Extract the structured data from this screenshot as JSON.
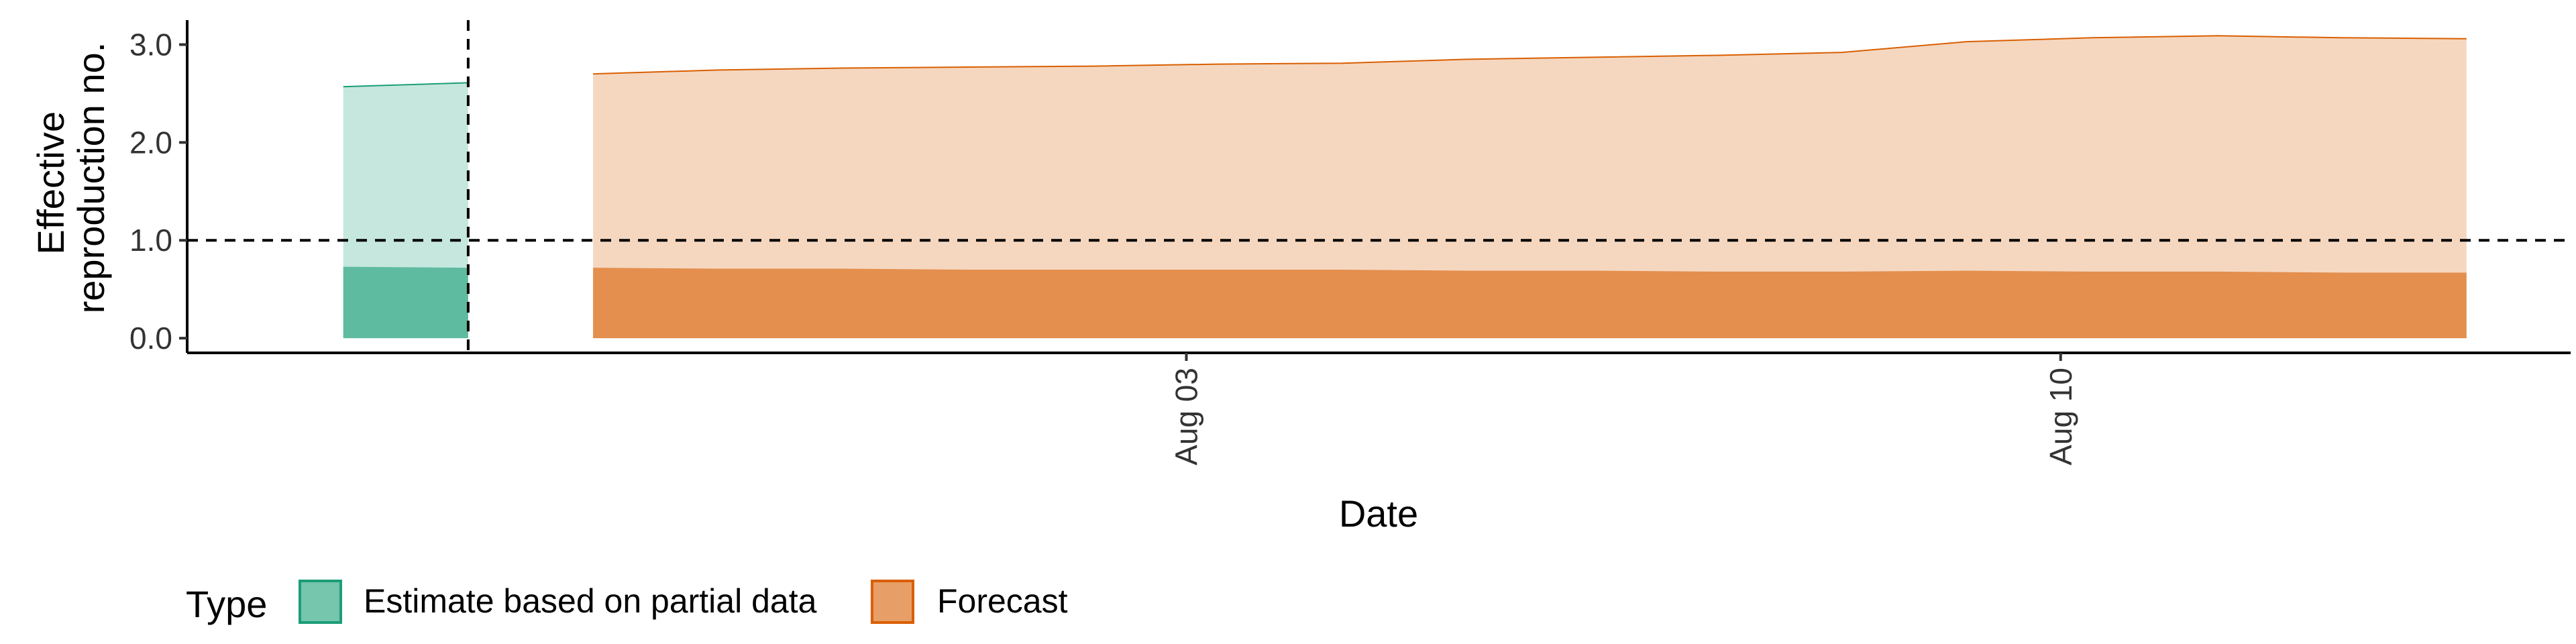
{
  "chart_data": {
    "type": "area",
    "xlabel": "Date",
    "ylabel_lines": [
      "Effective",
      "reproduction no."
    ],
    "ylim": [
      -0.15,
      3.25
    ],
    "yticks": [
      0.0,
      1.0,
      2.0,
      3.0
    ],
    "ytick_labels": [
      "0.0",
      "1.0",
      "2.0",
      "3.0"
    ],
    "xlim": [
      "2020-07-26T00:00",
      "2020-08-14T02:00"
    ],
    "xticks": [
      {
        "date": "2020-08-03",
        "label": "Aug 03"
      },
      {
        "date": "2020-08-10",
        "label": "Aug 10"
      }
    ],
    "reference_lines": {
      "y": 1.0,
      "x_date": "2020-07-28T06:00"
    },
    "series": [
      {
        "name": "Estimate based on partial data",
        "fill_color": "#1b9e77",
        "points": [
          {
            "x": "2020-07-27T06:00",
            "lower": 0.0,
            "mid_lower": 0.0,
            "mid_upper": 0.73,
            "upper": 2.57
          },
          {
            "x": "2020-07-28T06:00",
            "lower": 0.0,
            "mid_lower": 0.0,
            "mid_upper": 0.72,
            "upper": 2.61
          }
        ]
      },
      {
        "name": "Forecast",
        "fill_color": "#d95f02",
        "points": [
          {
            "x": "2020-07-29T06:00",
            "lower": 0.0,
            "mid_lower": 0.0,
            "mid_upper": 0.72,
            "upper": 2.7
          },
          {
            "x": "2020-07-30T06:00",
            "lower": 0.0,
            "mid_lower": 0.0,
            "mid_upper": 0.71,
            "upper": 2.74
          },
          {
            "x": "2020-07-31T06:00",
            "lower": 0.0,
            "mid_lower": 0.0,
            "mid_upper": 0.71,
            "upper": 2.76
          },
          {
            "x": "2020-08-01T06:00",
            "lower": 0.0,
            "mid_lower": 0.0,
            "mid_upper": 0.7,
            "upper": 2.77
          },
          {
            "x": "2020-08-02T06:00",
            "lower": 0.0,
            "mid_lower": 0.0,
            "mid_upper": 0.7,
            "upper": 2.78
          },
          {
            "x": "2020-08-03T06:00",
            "lower": 0.0,
            "mid_lower": 0.0,
            "mid_upper": 0.7,
            "upper": 2.8
          },
          {
            "x": "2020-08-04T06:00",
            "lower": 0.0,
            "mid_lower": 0.0,
            "mid_upper": 0.7,
            "upper": 2.81
          },
          {
            "x": "2020-08-05T06:00",
            "lower": 0.0,
            "mid_lower": 0.0,
            "mid_upper": 0.69,
            "upper": 2.85
          },
          {
            "x": "2020-08-06T06:00",
            "lower": 0.0,
            "mid_lower": 0.0,
            "mid_upper": 0.69,
            "upper": 2.87
          },
          {
            "x": "2020-08-07T06:00",
            "lower": 0.0,
            "mid_lower": 0.0,
            "mid_upper": 0.68,
            "upper": 2.89
          },
          {
            "x": "2020-08-08T06:00",
            "lower": 0.0,
            "mid_lower": 0.0,
            "mid_upper": 0.68,
            "upper": 2.92
          },
          {
            "x": "2020-08-09T06:00",
            "lower": 0.0,
            "mid_lower": 0.0,
            "mid_upper": 0.69,
            "upper": 3.03
          },
          {
            "x": "2020-08-10T06:00",
            "lower": 0.0,
            "mid_lower": 0.0,
            "mid_upper": 0.68,
            "upper": 3.07
          },
          {
            "x": "2020-08-11T06:00",
            "lower": 0.0,
            "mid_lower": 0.0,
            "mid_upper": 0.68,
            "upper": 3.09
          },
          {
            "x": "2020-08-12T06:00",
            "lower": 0.0,
            "mid_lower": 0.0,
            "mid_upper": 0.67,
            "upper": 3.07
          },
          {
            "x": "2020-08-13T06:00",
            "lower": 0.0,
            "mid_lower": 0.0,
            "mid_upper": 0.67,
            "upper": 3.06
          }
        ]
      }
    ],
    "legend": {
      "title": "Type",
      "position": "bottom-left",
      "entries": [
        "Estimate based on partial data",
        "Forecast"
      ]
    },
    "grid": false
  },
  "colors": {
    "estimate": "#1b9e77",
    "forecast": "#d95f02"
  }
}
